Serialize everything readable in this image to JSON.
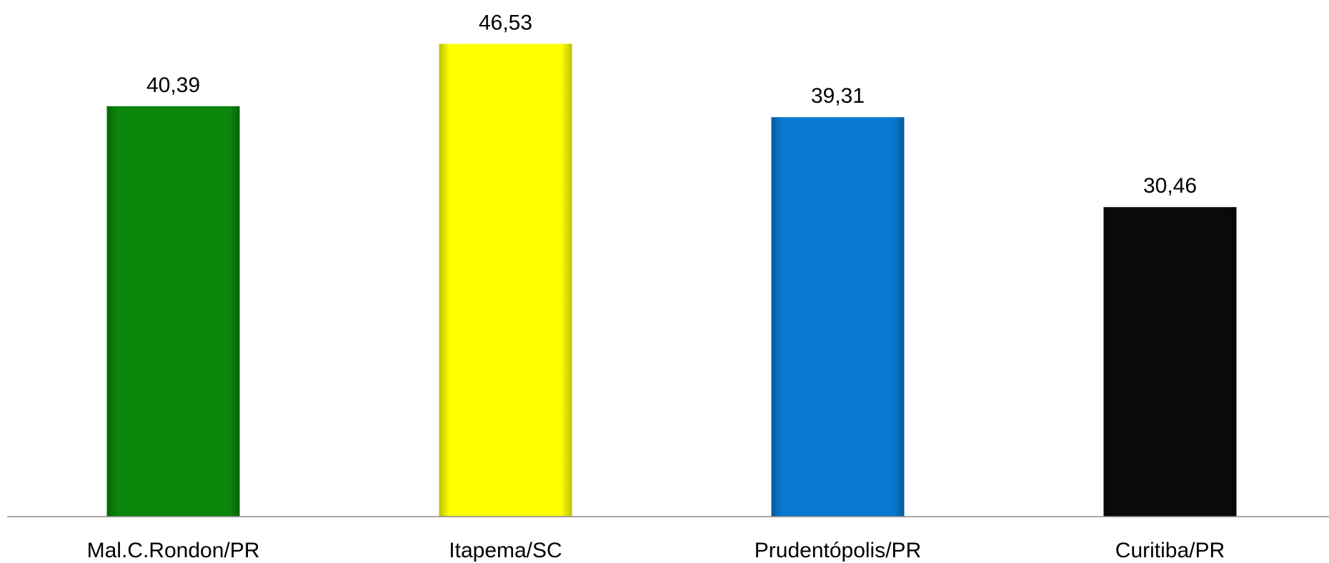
{
  "chart_data": {
    "type": "bar",
    "categories": [
      "Mal.C.Rondon/PR",
      "Itapema/SC",
      "Prudentópolis/PR",
      "Curitiba/PR"
    ],
    "values": [
      40.39,
      46.53,
      39.31,
      30.46
    ],
    "value_labels": [
      "40,39",
      "46,53",
      "39,31",
      "30,46"
    ],
    "colors": [
      "#0a860a",
      "#ffff00",
      "#0879cf",
      "#0a0a0a"
    ],
    "ylim": [
      0,
      50
    ]
  }
}
